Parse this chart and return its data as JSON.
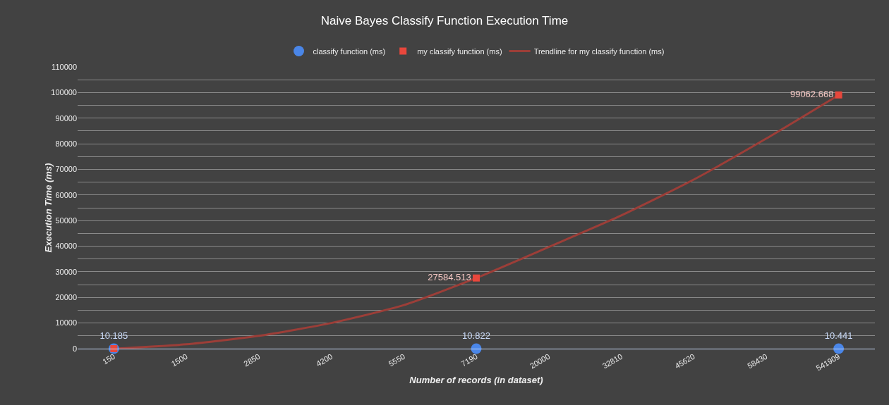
{
  "chart_data": {
    "type": "scatter",
    "title": "Naive Bayes Classify Function Execution Time",
    "xlabel": "Number of records (in dataset)",
    "ylabel": "Execution Time (ms)",
    "categories": [
      "150",
      "1500",
      "2850",
      "4200",
      "5550",
      "7190",
      "20000",
      "32810",
      "45620",
      "58430",
      "541909"
    ],
    "series": [
      {
        "name": "classify function (ms)",
        "marker": "circle",
        "color": "#4a86e8",
        "values": [
          10.185,
          null,
          null,
          null,
          null,
          10.822,
          null,
          null,
          null,
          null,
          10.441
        ],
        "value_labels": [
          "10.185",
          null,
          null,
          null,
          null,
          "10.822",
          null,
          null,
          null,
          null,
          "10.441"
        ]
      },
      {
        "name": "my classify function (ms)",
        "marker": "square",
        "color": "#e8473c",
        "values": [
          0,
          null,
          null,
          null,
          null,
          27584.513,
          null,
          null,
          null,
          null,
          99062.668
        ],
        "value_labels": [
          null,
          null,
          null,
          null,
          null,
          "27584.513",
          null,
          null,
          null,
          null,
          "99062.668"
        ]
      },
      {
        "name": "Trendline for my classify function (ms)",
        "type": "line",
        "marker": "none",
        "line_style": "solid",
        "color": "#9c3e38",
        "values": [
          0,
          1700,
          5000,
          10000,
          17000,
          27600,
          39700,
          52000,
          66000,
          82000,
          99000
        ]
      }
    ],
    "ylim": [
      0,
      110000
    ],
    "yticks": [
      0,
      {
        "value": 5000,
        "label": null
      },
      10000,
      {
        "value": 15000,
        "label": null
      },
      20000,
      {
        "value": 25000,
        "label": null
      },
      30000,
      {
        "value": 35000,
        "label": null
      },
      40000,
      {
        "value": 45000,
        "label": null
      },
      50000,
      {
        "value": 55000,
        "label": null
      },
      60000,
      {
        "value": 65000,
        "label": null
      },
      70000,
      {
        "value": 75000,
        "label": null
      },
      80000,
      {
        "value": 85000,
        "label": null
      },
      90000,
      {
        "value": 95000,
        "label": null
      },
      100000,
      {
        "value": 105000,
        "label": null
      },
      110000
    ],
    "grid": true,
    "legend": "top"
  }
}
